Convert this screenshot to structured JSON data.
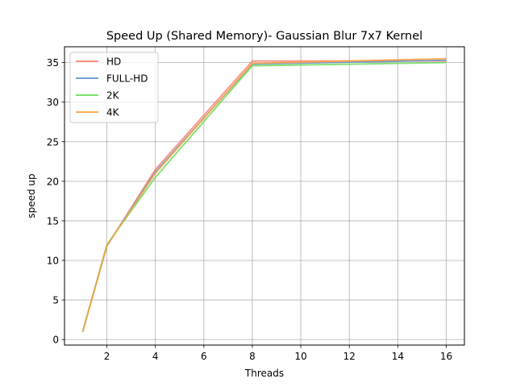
{
  "chart_data": {
    "type": "line",
    "title": "Speed Up (Shared Memory)- Gaussian Blur 7x7 Kernel",
    "xlabel": "Threads",
    "ylabel": "speed up",
    "x": [
      1,
      2,
      4,
      8,
      16
    ],
    "xlim": [
      0.25,
      16.75
    ],
    "ylim": [
      -0.7,
      37.0
    ],
    "xticks": [
      2,
      4,
      6,
      8,
      10,
      12,
      14,
      16
    ],
    "yticks": [
      0,
      5,
      10,
      15,
      20,
      25,
      30,
      35
    ],
    "grid": true,
    "legend_position": "top-left",
    "series": [
      {
        "name": "HD",
        "color": "#fa8072",
        "values": [
          1,
          11.8,
          21.5,
          35.2,
          35.2
        ]
      },
      {
        "name": "FULL-HD",
        "color": "#6495cd",
        "values": [
          1,
          11.9,
          21.2,
          34.8,
          35.3
        ]
      },
      {
        "name": "2K",
        "color": "#66dd55",
        "values": [
          1,
          12.0,
          20.5,
          34.6,
          35.0
        ]
      },
      {
        "name": "4K",
        "color": "#ffa040",
        "values": [
          1,
          11.9,
          21.0,
          34.9,
          35.5
        ]
      }
    ]
  }
}
